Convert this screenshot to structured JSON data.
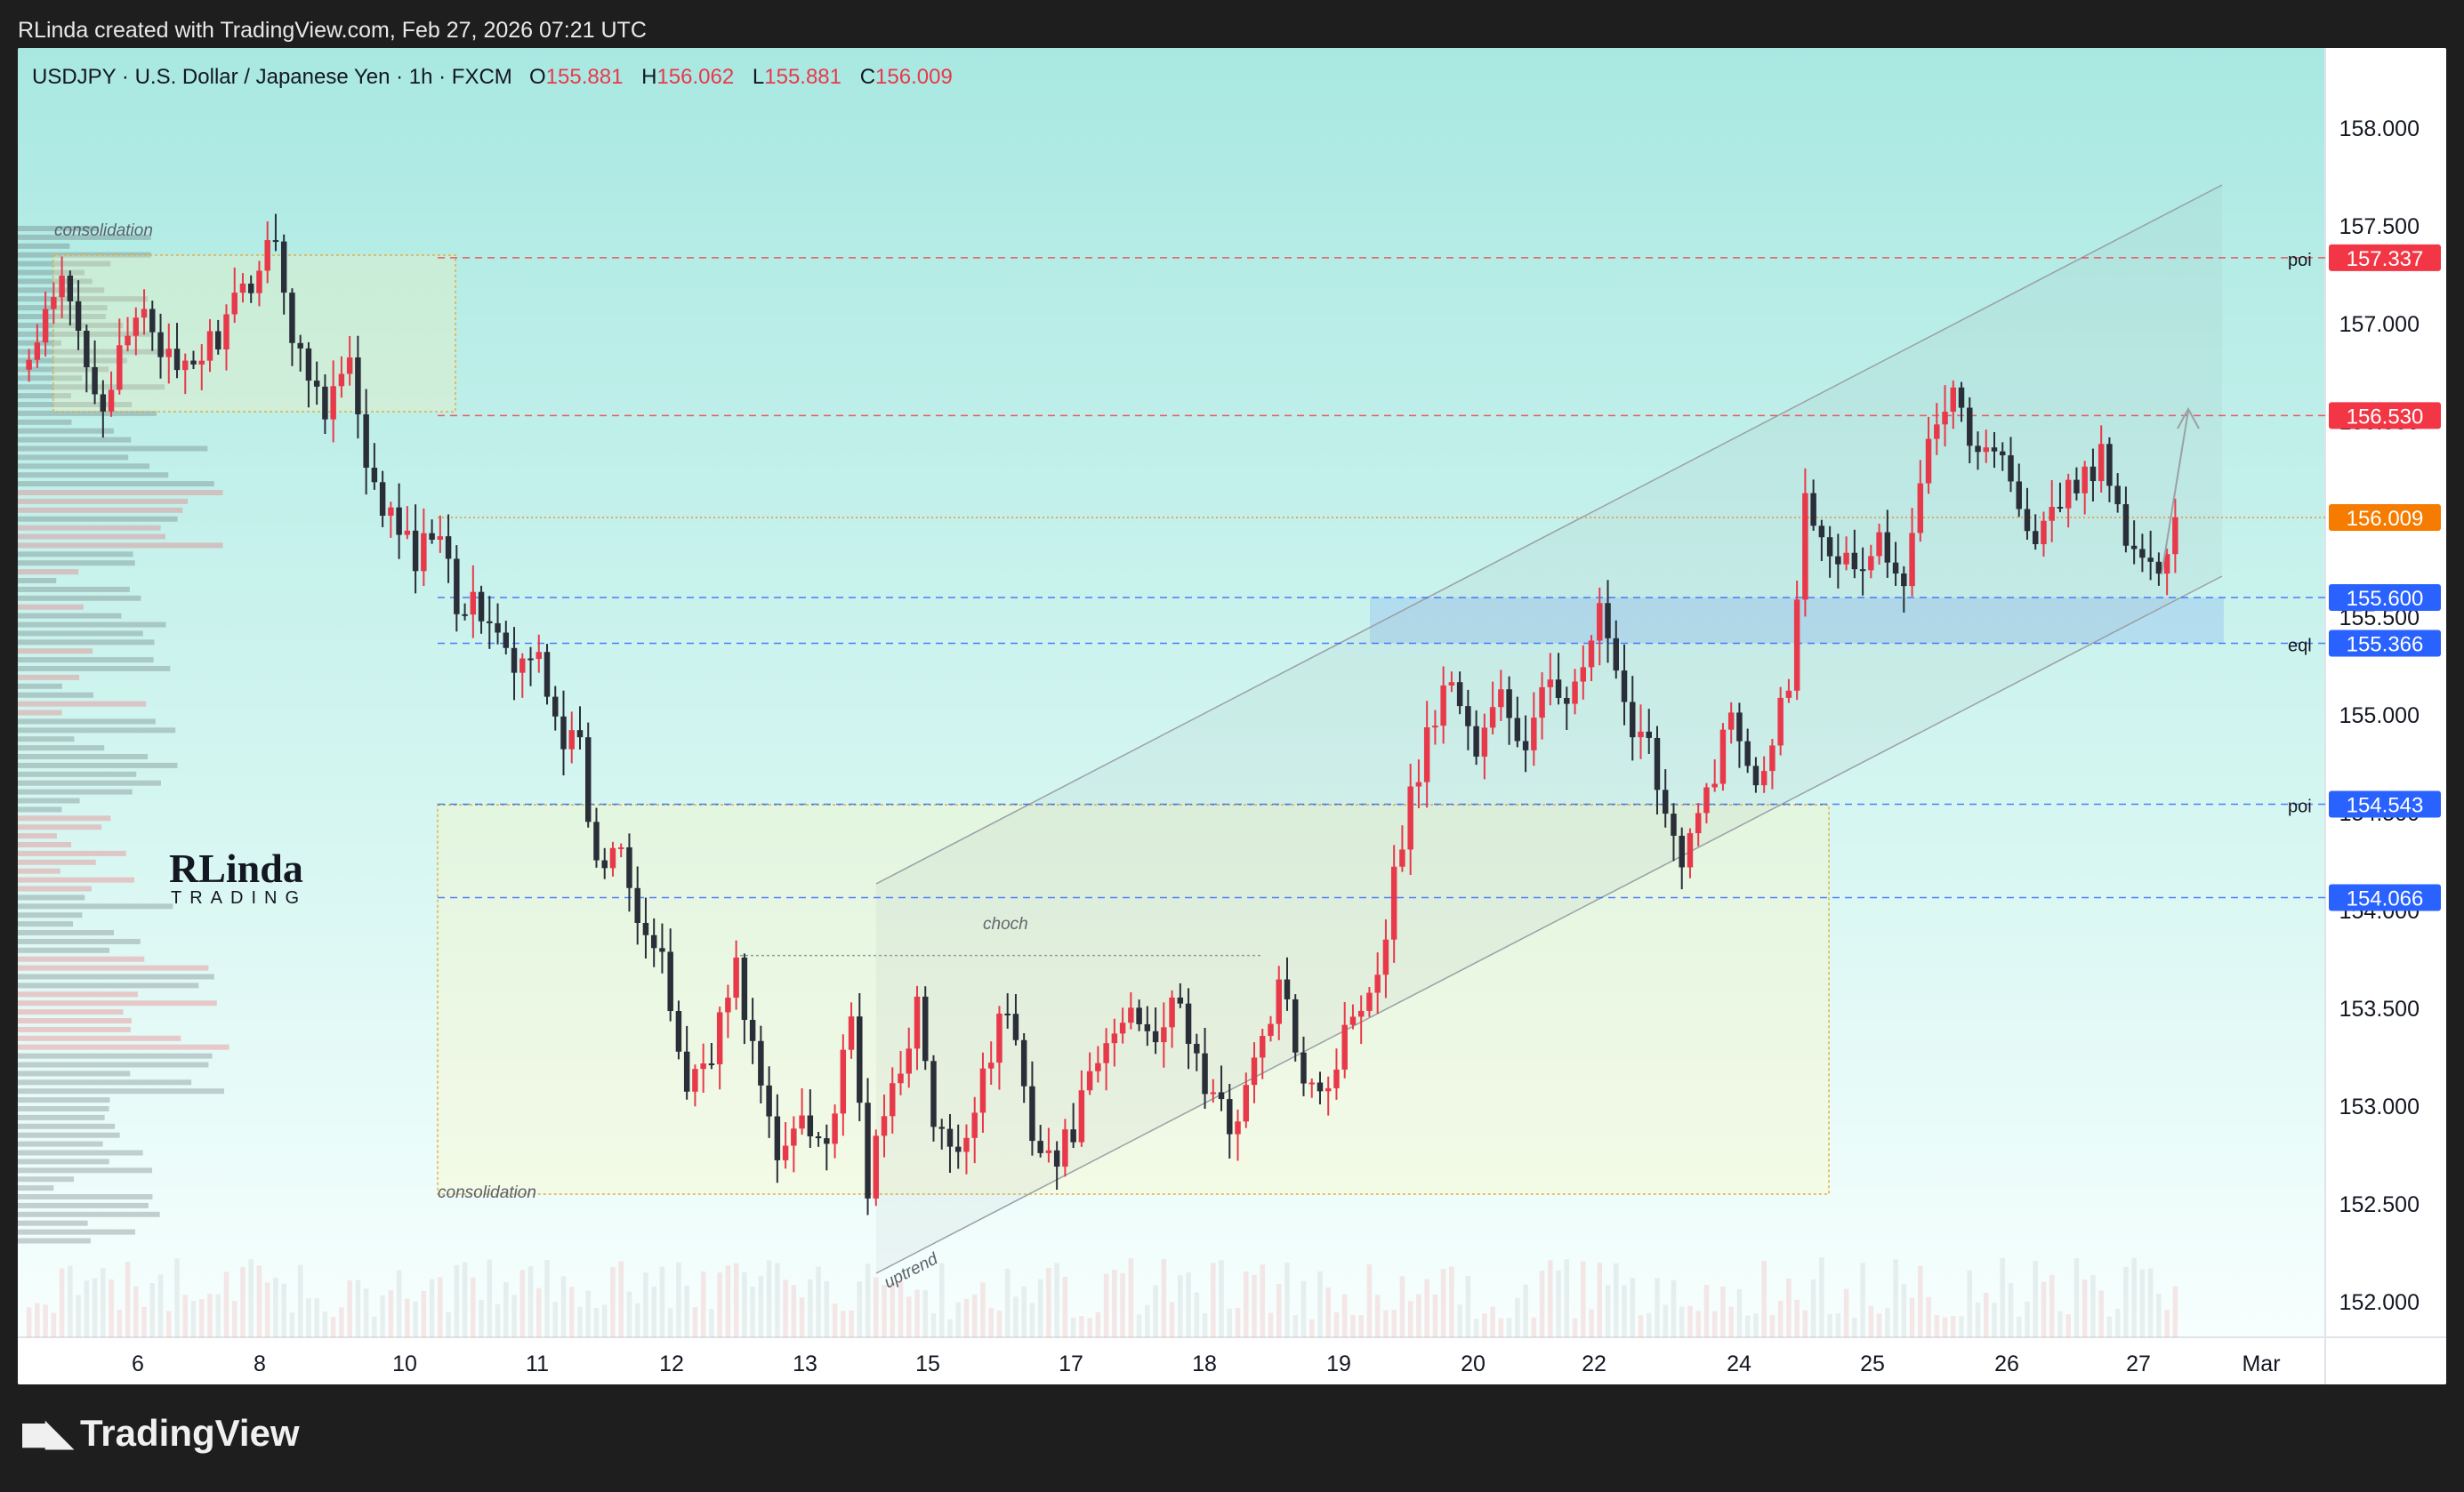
{
  "attribution": "RLinda created with TradingView.com, Feb 27, 2026 07:21 UTC",
  "footer_brand": "TradingView",
  "footer_icon": "tradingview-logo-icon",
  "watermark": {
    "line1": "RLinda",
    "line2": "TRADING"
  },
  "header": {
    "symbol": "USDJPY · U.S. Dollar / Japanese Yen · 1h · FXCM",
    "open_label": "O",
    "open": "155.881",
    "high_label": "H",
    "high": "156.062",
    "low_label": "L",
    "low": "155.881",
    "close_label": "C",
    "close": "156.009"
  },
  "colors": {
    "up": "#e8394a",
    "down": "#2a2e39",
    "bg_top": "#a9e8e2",
    "bg_bottom": "#f6fffe",
    "poi_red": "#f23645",
    "last_price": "#f57c00",
    "level_blue": "#2962ff"
  },
  "chart_data": {
    "type": "candlestick",
    "symbol": "USDJPY",
    "timeframe": "1h",
    "ylim": [
      151.7,
      158.3
    ],
    "y_ticks": [
      "152.000",
      "152.500",
      "153.000",
      "153.500",
      "154.000",
      "154.500",
      "155.000",
      "155.500",
      "156.000",
      "156.500",
      "157.000",
      "157.500",
      "158.000"
    ],
    "x_ticks": [
      "6",
      "8",
      "10",
      "11",
      "12",
      "13",
      "15",
      "17",
      "18",
      "19",
      "20",
      "22",
      "24",
      "25",
      "26",
      "27",
      "Mar"
    ],
    "anchors": [
      [
        0,
        156.8
      ],
      [
        4,
        157.2
      ],
      [
        9,
        156.6
      ],
      [
        14,
        157.1
      ],
      [
        18,
        156.7
      ],
      [
        24,
        157.0
      ],
      [
        28,
        157.3
      ],
      [
        30,
        157.5
      ],
      [
        32,
        156.9
      ],
      [
        36,
        156.6
      ],
      [
        39,
        156.8
      ],
      [
        41,
        156.2
      ],
      [
        44,
        156.0
      ],
      [
        47,
        155.8
      ],
      [
        50,
        156.0
      ],
      [
        52,
        155.6
      ],
      [
        56,
        155.5
      ],
      [
        59,
        155.2
      ],
      [
        62,
        155.3
      ],
      [
        65,
        154.9
      ],
      [
        67,
        154.8
      ],
      [
        69,
        154.2
      ],
      [
        72,
        154.4
      ],
      [
        74,
        154.0
      ],
      [
        77,
        153.7
      ],
      [
        80,
        153.1
      ],
      [
        83,
        153.3
      ],
      [
        86,
        153.7
      ],
      [
        88,
        153.3
      ],
      [
        91,
        152.7
      ],
      [
        94,
        153.0
      ],
      [
        97,
        152.8
      ],
      [
        100,
        153.4
      ],
      [
        102,
        152.6
      ],
      [
        105,
        153.1
      ],
      [
        108,
        153.5
      ],
      [
        110,
        152.9
      ],
      [
        113,
        152.7
      ],
      [
        116,
        153.2
      ],
      [
        119,
        153.5
      ],
      [
        122,
        152.9
      ],
      [
        125,
        152.7
      ],
      [
        128,
        153.0
      ],
      [
        131,
        153.3
      ],
      [
        134,
        153.5
      ],
      [
        137,
        153.4
      ],
      [
        140,
        153.5
      ],
      [
        143,
        153.1
      ],
      [
        146,
        152.9
      ],
      [
        149,
        153.2
      ],
      [
        152,
        153.6
      ],
      [
        155,
        153.2
      ],
      [
        158,
        153.1
      ],
      [
        161,
        153.5
      ],
      [
        164,
        153.7
      ],
      [
        167,
        154.4
      ],
      [
        170,
        154.9
      ],
      [
        173,
        155.2
      ],
      [
        176,
        154.8
      ],
      [
        179,
        155.1
      ],
      [
        182,
        154.8
      ],
      [
        185,
        155.2
      ],
      [
        188,
        155.1
      ],
      [
        191,
        155.5
      ],
      [
        194,
        155.0
      ],
      [
        197,
        154.9
      ],
      [
        199,
        154.5
      ],
      [
        201,
        154.2
      ],
      [
        204,
        154.6
      ],
      [
        207,
        155.0
      ],
      [
        210,
        154.7
      ],
      [
        212,
        154.9
      ],
      [
        214,
        155.2
      ],
      [
        216,
        156.1
      ],
      [
        219,
        155.9
      ],
      [
        222,
        155.7
      ],
      [
        225,
        155.9
      ],
      [
        228,
        155.6
      ],
      [
        231,
        156.5
      ],
      [
        234,
        156.7
      ],
      [
        237,
        156.3
      ],
      [
        240,
        156.4
      ],
      [
        243,
        155.9
      ],
      [
        246,
        156.0
      ],
      [
        249,
        156.2
      ],
      [
        252,
        156.3
      ],
      [
        255,
        155.9
      ],
      [
        258,
        155.7
      ],
      [
        261,
        156.0
      ]
    ],
    "annotations": [
      {
        "type": "zone",
        "label": "consolidation",
        "price_top": 157.35,
        "price_bottom": 156.55
      },
      {
        "type": "zone",
        "label": "consolidation",
        "price_top": 154.54,
        "price_bottom": 152.55
      },
      {
        "type": "zone",
        "label": "",
        "price_top": 155.6,
        "price_bottom": 155.366
      },
      {
        "type": "level",
        "label": "choch",
        "price": 153.77
      },
      {
        "type": "channel",
        "label": "uptrend"
      }
    ],
    "levels": [
      {
        "price": 157.337,
        "label": "157.337",
        "tag": "poi",
        "color": "#f23645"
      },
      {
        "price": 156.53,
        "label": "156.530",
        "tag": "",
        "color": "#f23645"
      },
      {
        "price": 156.009,
        "label": "156.009",
        "tag": "",
        "color": "#f57c00"
      },
      {
        "price": 155.6,
        "label": "155.600",
        "tag": "",
        "color": "#2962ff"
      },
      {
        "price": 155.366,
        "label": "155.366",
        "tag": "eql",
        "color": "#2962ff"
      },
      {
        "price": 154.543,
        "label": "154.543",
        "tag": "poi",
        "color": "#2962ff"
      },
      {
        "price": 154.066,
        "label": "154.066",
        "tag": "",
        "color": "#2962ff"
      }
    ]
  }
}
